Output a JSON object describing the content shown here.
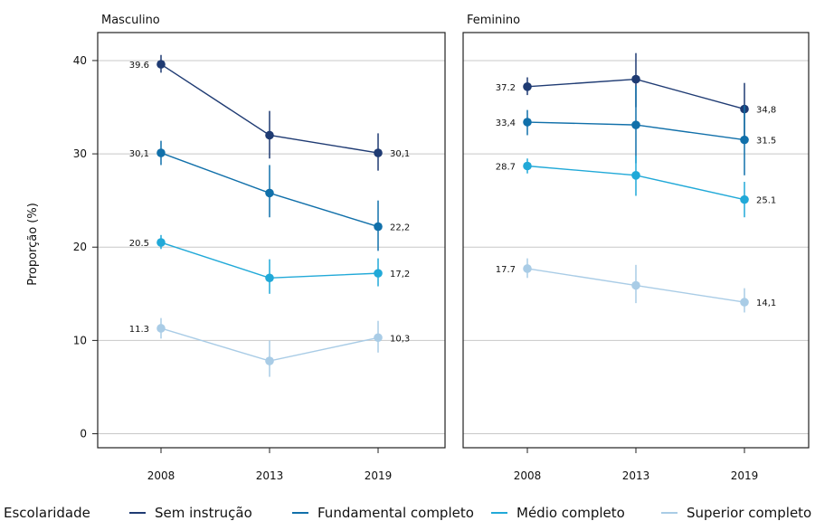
{
  "chart_data": {
    "type": "line",
    "ylabel": "Proporção (%)",
    "ylim": [
      -1.5,
      43
    ],
    "y_ticks": [
      "0",
      "10",
      "20",
      "30",
      "40"
    ],
    "y_tick_values": [
      0,
      10,
      20,
      30,
      40
    ],
    "x": [
      "2008",
      "2013",
      "2019"
    ],
    "grid": "horizontal",
    "legend": {
      "title": "Escolaridade",
      "position": "bottom",
      "entries": [
        "Sem instrução",
        "Fundamental completo",
        "Médio completo",
        "Superior completo"
      ]
    },
    "series_colors": [
      "#1f3b73",
      "#1170aa",
      "#21a9d8",
      "#a9cce6"
    ],
    "panels": [
      {
        "title": "Masculino",
        "series": [
          {
            "name": "Sem instrução",
            "values": [
              39.6,
              32.0,
              30.1
            ],
            "lower": [
              38.7,
              29.5,
              28.2
            ],
            "upper": [
              40.6,
              34.6,
              32.2
            ],
            "labels": [
              "39.6",
              "",
              "30,1"
            ]
          },
          {
            "name": "Fundamental completo",
            "values": [
              30.1,
              25.8,
              22.2
            ],
            "lower": [
              28.8,
              23.2,
              19.6
            ],
            "upper": [
              31.4,
              28.8,
              25.0
            ],
            "labels": [
              "30,1",
              "",
              "22,2"
            ]
          },
          {
            "name": "Médio completo",
            "values": [
              20.5,
              16.7,
              17.2
            ],
            "lower": [
              19.8,
              15.0,
              15.8
            ],
            "upper": [
              21.3,
              18.7,
              18.8
            ],
            "labels": [
              "20.5",
              "",
              "17,2"
            ]
          },
          {
            "name": "Superior completo",
            "values": [
              11.3,
              7.8,
              10.3
            ],
            "lower": [
              10.2,
              6.1,
              8.7
            ],
            "upper": [
              12.4,
              10.0,
              12.1
            ],
            "labels": [
              "11.3",
              "",
              "10,3"
            ]
          }
        ]
      },
      {
        "title": "Feminino",
        "series": [
          {
            "name": "Sem instrução",
            "values": [
              37.2,
              38.0,
              34.8
            ],
            "lower": [
              36.3,
              35.0,
              31.8
            ],
            "upper": [
              38.2,
              40.8,
              37.6
            ],
            "labels": [
              "37.2",
              "",
              "34,8"
            ]
          },
          {
            "name": "Fundamental completo",
            "values": [
              33.4,
              33.1,
              31.5
            ],
            "lower": [
              32.0,
              29.0,
              27.7
            ],
            "upper": [
              34.7,
              37.3,
              35.2
            ],
            "labels": [
              "33,4",
              "",
              "31.5"
            ]
          },
          {
            "name": "Médio completo",
            "values": [
              28.7,
              27.7,
              25.1
            ],
            "lower": [
              27.9,
              25.5,
              23.2
            ],
            "upper": [
              29.5,
              29.8,
              27.0
            ],
            "labels": [
              "28.7",
              "",
              "25.1"
            ]
          },
          {
            "name": "Superior completo",
            "values": [
              17.7,
              15.9,
              14.1
            ],
            "lower": [
              16.7,
              14.0,
              13.0
            ],
            "upper": [
              18.8,
              18.1,
              15.6
            ],
            "labels": [
              "17.7",
              "",
              "14,1"
            ]
          }
        ]
      }
    ]
  }
}
